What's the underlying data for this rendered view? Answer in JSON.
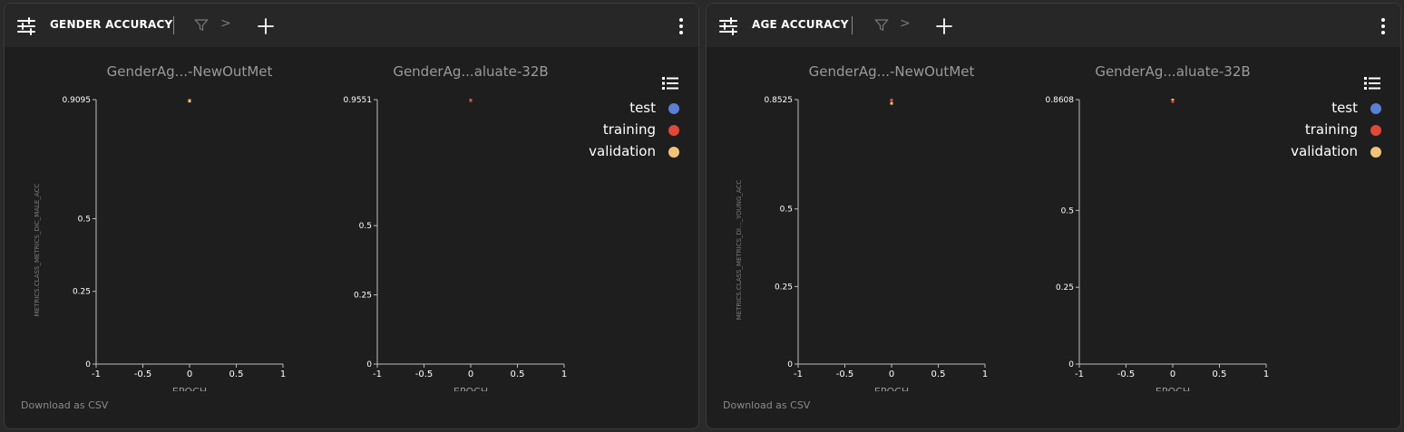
{
  "colors": {
    "test": "#5b7fd4",
    "training": "#e0483a",
    "validation": "#f1c37a",
    "axis": "#bdbdbd",
    "tick_text": "#ffffff",
    "plot_title": "#9a9a9a"
  },
  "icons": {
    "settings": "sliders-icon",
    "filter": "filter-icon",
    "chevron": "chevron-right-icon",
    "add": "plus-icon",
    "menu": "kebab-menu-icon",
    "legend": "list-icon"
  },
  "panels": [
    {
      "title": "GENDER ACCURACY",
      "chevron": ">",
      "download_label": "Download as CSV",
      "legend": [
        {
          "label": "test",
          "color": "#5b7fd4"
        },
        {
          "label": "training",
          "color": "#e0483a"
        },
        {
          "label": "validation",
          "color": "#f1c37a"
        }
      ],
      "chart_data": [
        {
          "type": "scatter",
          "title": "GenderAg...-NewOutMet",
          "xlabel": "EPOCH",
          "ylabel": "METRICS.CLASS_METRICS_DIC_MALE_ACC",
          "xlim": [
            -1,
            1
          ],
          "ylim": [
            0,
            0.9095
          ],
          "xticks": [
            "-1",
            "-0.5",
            "0",
            "0.5",
            "1"
          ],
          "yticks": [
            {
              "label": "0",
              "value": 0
            },
            {
              "label": "0.25",
              "value": 0.25
            },
            {
              "label": "0.5",
              "value": 0.5
            },
            {
              "label": "0.9095",
              "value": 0.9095
            }
          ],
          "series": [
            {
              "name": "training",
              "color": "#e0483a",
              "points": [
                [
                  0,
                  0.9095
                ]
              ]
            },
            {
              "name": "validation",
              "color": "#f1c37a",
              "points": [
                [
                  0,
                  0.906
                ]
              ]
            }
          ]
        },
        {
          "type": "scatter",
          "title": "GenderAg...aluate-32B",
          "xlabel": "EPOCH",
          "ylabel": "",
          "xlim": [
            -1,
            1
          ],
          "ylim": [
            0,
            0.9551
          ],
          "xticks": [
            "-1",
            "-0.5",
            "0",
            "0.5",
            "1"
          ],
          "yticks": [
            {
              "label": "0",
              "value": 0
            },
            {
              "label": "0.25",
              "value": 0.25
            },
            {
              "label": "0.5",
              "value": 0.5
            },
            {
              "label": "0.9551",
              "value": 0.9551
            }
          ],
          "series": [
            {
              "name": "test",
              "color": "#5b7fd4",
              "points": [
                [
                  0,
                  0.9551
                ]
              ]
            },
            {
              "name": "training",
              "color": "#e0483a",
              "points": [
                [
                  0,
                  0.953
                ]
              ]
            }
          ]
        }
      ]
    },
    {
      "title": "AGE ACCURACY",
      "chevron": ">",
      "download_label": "Download as CSV",
      "legend": [
        {
          "label": "test",
          "color": "#5b7fd4"
        },
        {
          "label": "training",
          "color": "#e0483a"
        },
        {
          "label": "validation",
          "color": "#f1c37a"
        }
      ],
      "chart_data": [
        {
          "type": "scatter",
          "title": "GenderAg...-NewOutMet",
          "xlabel": "EPOCH",
          "ylabel": "METRICS.CLASS_METRICS_DI..._YOUNG_ACC",
          "xlim": [
            -1,
            1
          ],
          "ylim": [
            0,
            0.8525
          ],
          "xticks": [
            "-1",
            "-0.5",
            "0",
            "0.5",
            "1"
          ],
          "yticks": [
            {
              "label": "0",
              "value": 0
            },
            {
              "label": "0.25",
              "value": 0.25
            },
            {
              "label": "0.5",
              "value": 0.5
            },
            {
              "label": "0.8525",
              "value": 0.8525
            }
          ],
          "series": [
            {
              "name": "training",
              "color": "#e0483a",
              "points": [
                [
                  0,
                  0.8525
                ]
              ]
            },
            {
              "name": "validation",
              "color": "#f1c37a",
              "points": [
                [
                  0,
                  0.842
                ]
              ]
            }
          ]
        },
        {
          "type": "scatter",
          "title": "GenderAg...aluate-32B",
          "xlabel": "EPOCH",
          "ylabel": "",
          "xlim": [
            -1,
            1
          ],
          "ylim": [
            0,
            0.8608
          ],
          "xticks": [
            "-1",
            "-0.5",
            "0",
            "0.5",
            "1"
          ],
          "yticks": [
            {
              "label": "0",
              "value": 0
            },
            {
              "label": "0.25",
              "value": 0.25
            },
            {
              "label": "0.5",
              "value": 0.5
            },
            {
              "label": "0.8608",
              "value": 0.8608
            }
          ],
          "series": [
            {
              "name": "validation",
              "color": "#f1c37a",
              "points": [
                [
                  0,
                  0.8608
                ]
              ]
            },
            {
              "name": "training",
              "color": "#e0483a",
              "points": [
                [
                  0,
                  0.856
                ]
              ]
            }
          ]
        }
      ]
    }
  ]
}
